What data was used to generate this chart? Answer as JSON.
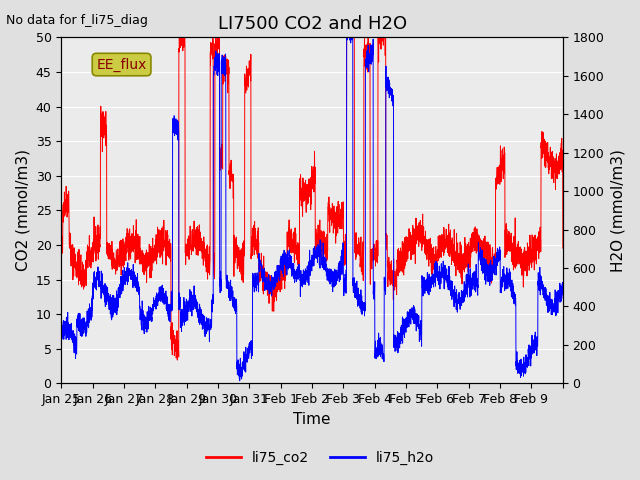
{
  "title": "LI7500 CO2 and H2O",
  "top_left_text": "No data for f_li75_diag",
  "xlabel": "Time",
  "ylabel_left": "CO2 (mmol/m3)",
  "ylabel_right": "H2O (mmol/m3)",
  "ylim_left": [
    0,
    50
  ],
  "ylim_right": [
    0,
    1800
  ],
  "yticks_left": [
    0,
    5,
    10,
    15,
    20,
    25,
    30,
    35,
    40,
    45,
    50
  ],
  "yticks_right": [
    0,
    200,
    400,
    600,
    800,
    1000,
    1200,
    1400,
    1600,
    1800
  ],
  "x_tick_positions": [
    0,
    1,
    2,
    3,
    4,
    5,
    6,
    7,
    8,
    9,
    10,
    11,
    12,
    13,
    14,
    15,
    16
  ],
  "x_tick_labels": [
    "Jan 25",
    "Jan 26",
    "Jan 27",
    "Jan 28",
    "Jan 29",
    "Jan 30",
    "Jan 31",
    "Feb 1",
    "Feb 2",
    "Feb 3",
    "Feb 4",
    "Feb 5",
    "Feb 6",
    "Feb 7",
    "Feb 8",
    "Feb 9",
    ""
  ],
  "background_color": "#e0e0e0",
  "plot_bg_color": "#ebebeb",
  "co2_color": "#ff0000",
  "h2o_color": "#0000ff",
  "legend_box_color": "#cccc44",
  "legend_box_text": "EE_flux",
  "title_fontsize": 13,
  "axis_label_fontsize": 11,
  "tick_fontsize": 9,
  "legend_fontsize": 10
}
